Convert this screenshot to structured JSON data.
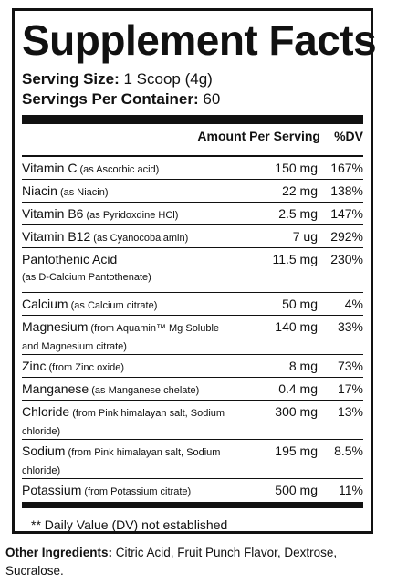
{
  "panel": {
    "title": "Supplement Facts",
    "serving_size_label": "Serving Size:",
    "serving_size_value": " 1 Scoop (4g)",
    "servings_label": "Servings Per Container:",
    "servings_value": " 60",
    "header_amount": "Amount Per Serving",
    "header_dv": "%DV",
    "footnote": "** Daily Value (DV) not established"
  },
  "nutrients": [
    {
      "name": "Vitamin C",
      "source": " (as Ascorbic acid)",
      "amount": "150 mg",
      "dv": "167%"
    },
    {
      "name": "Niacin",
      "source": " (as Niacin)",
      "amount": "22 mg",
      "dv": "138%"
    },
    {
      "name": "Vitamin B6",
      "source": " (as Pyridoxdine HCl)",
      "amount": "2.5 mg",
      "dv": "147%"
    },
    {
      "name": "Vitamin B12",
      "source": " (as Cyanocobalamin)",
      "amount": "7 ug",
      "dv": "292%"
    },
    {
      "name": "Pantothenic Acid",
      "source": "(as D-Calcium Pantothenate)",
      "amount": "11.5 mg",
      "dv": "230%"
    },
    {
      "name": "Calcium",
      "source": " (as Calcium citrate)",
      "amount": "50 mg",
      "dv": "4%"
    },
    {
      "name": "Magnesium",
      "source": " (from Aquamin™ Mg Soluble and Magnesium citrate)",
      "amount": "140 mg",
      "dv": "33%"
    },
    {
      "name": "Zinc",
      "source": " (from Zinc oxide)",
      "amount": "8 mg",
      "dv": "73%"
    },
    {
      "name": "Manganese",
      "source": " (as Manganese chelate)",
      "amount": "0.4 mg",
      "dv": "17%"
    },
    {
      "name": "Chloride",
      "source": " (from Pink himalayan salt, Sodium chloride)",
      "amount": "300 mg",
      "dv": "13%"
    },
    {
      "name": "Sodium",
      "source": " (from Pink himalayan salt, Sodium chloride)",
      "amount": "195 mg",
      "dv": "8.5%"
    },
    {
      "name": "Potassium",
      "source": " (from Potassium citrate)",
      "amount": "500 mg",
      "dv": "11%"
    }
  ],
  "other_ingredients": {
    "label": "Other Ingredients:",
    "text": " Citric Acid, Fruit Punch Flavor, Dextrose, Sucralose."
  }
}
